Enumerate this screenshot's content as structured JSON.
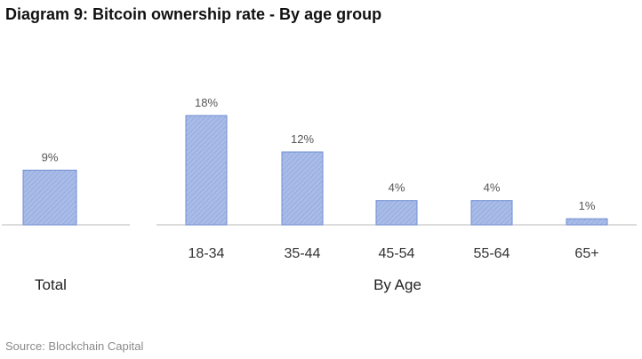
{
  "title": "Diagram 9: Bitcoin ownership rate - By age group",
  "source": "Source: Blockchain Capital",
  "colors": {
    "bar_fill": "#a9bce8",
    "bar_stroke": "#6f8ed3",
    "axis": "#c8c8c8"
  },
  "chart_data": [
    {
      "type": "bar",
      "group_label": "Total",
      "categories": [
        ""
      ],
      "values": [
        9
      ],
      "value_labels": [
        "9%"
      ],
      "ylim": [
        0,
        18
      ]
    },
    {
      "type": "bar",
      "group_label": "By Age",
      "categories": [
        "18-34",
        "35-44",
        "45-54",
        "55-64",
        "65+"
      ],
      "values": [
        18,
        12,
        4,
        4,
        1
      ],
      "value_labels": [
        "18%",
        "12%",
        "4%",
        "4%",
        "1%"
      ],
      "ylim": [
        0,
        18
      ]
    }
  ]
}
